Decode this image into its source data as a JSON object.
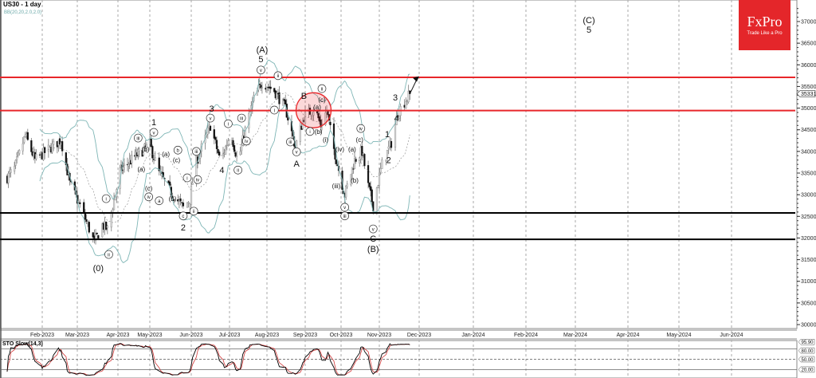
{
  "header": {
    "title": "US30 - 1 day",
    "indicator": "BB(20,20,2.0,2.0)"
  },
  "logo": {
    "brand": "FxPro",
    "tagline": "Trade Like a Pro"
  },
  "chart_data": {
    "type": "candlestick",
    "symbol": "US30",
    "timeframe": "1 day",
    "y_ticks": [
      30000,
      30500,
      31000,
      31500,
      32000,
      32500,
      33000,
      33500,
      34000,
      34500,
      35000,
      35500,
      36000,
      36500,
      37000
    ],
    "ylim": [
      29900,
      37350
    ],
    "x_ticks": [
      {
        "date": "2023-02-01",
        "label": "Feb-2023"
      },
      {
        "date": "2023-03-01",
        "label": "Mar-2023"
      },
      {
        "date": "2023-04-01",
        "label": "Apr-2023"
      },
      {
        "date": "2023-05-01",
        "label": "May-2023"
      },
      {
        "date": "2023-06-01",
        "label": "Jun-2023"
      },
      {
        "date": "2023-07-01",
        "label": "Jul-2023"
      },
      {
        "date": "2023-08-01",
        "label": "Aug-2023"
      },
      {
        "date": "2023-09-01",
        "label": "Sep-2023"
      },
      {
        "date": "2023-10-01",
        "label": "Oct-2023"
      },
      {
        "date": "2023-11-01",
        "label": "Nov-2023"
      },
      {
        "date": "2023-12-01",
        "label": "Dec-2023"
      },
      {
        "date": "2024-01-01",
        "label": "Jan-2024"
      },
      {
        "date": "2024-02-01",
        "label": "Feb-2024"
      },
      {
        "date": "2024-03-01",
        "label": "Mar-2024"
      },
      {
        "date": "2024-04-01",
        "label": "Apr-2024"
      },
      {
        "date": "2024-05-01",
        "label": "May-2024"
      },
      {
        "date": "2024-06-01",
        "label": "Jun-2024"
      }
    ],
    "current_price": "35331",
    "grid": "vertical dashed at month ticks",
    "close_waypoints": [
      [
        "2023-01-03",
        33400
      ],
      [
        "2023-01-09",
        33600
      ],
      [
        "2023-01-18",
        34370
      ],
      [
        "2023-01-26",
        33800
      ],
      [
        "2023-02-16",
        34270
      ],
      [
        "2023-02-23",
        33260
      ],
      [
        "2023-03-03",
        32750
      ],
      [
        "2023-03-14",
        31900
      ],
      [
        "2023-03-20",
        32300
      ],
      [
        "2023-03-24",
        32200
      ],
      [
        "2023-04-03",
        33550
      ],
      [
        "2023-04-18",
        33900
      ],
      [
        "2023-05-01",
        34150
      ],
      [
        "2023-05-08",
        33500
      ],
      [
        "2023-05-16",
        33100
      ],
      [
        "2023-05-26",
        32700
      ],
      [
        "2023-05-31",
        32900
      ],
      [
        "2023-06-04",
        33700
      ],
      [
        "2023-06-16",
        34600
      ],
      [
        "2023-06-24",
        33750
      ],
      [
        "2023-07-02",
        34450
      ],
      [
        "2023-07-08",
        33750
      ],
      [
        "2023-07-14",
        34500
      ],
      [
        "2023-07-21",
        35200
      ],
      [
        "2023-07-28",
        35600
      ],
      [
        "2023-08-07",
        35400
      ],
      [
        "2023-08-16",
        35000
      ],
      [
        "2023-08-24",
        34100
      ],
      [
        "2023-08-31",
        34800
      ],
      [
        "2023-09-09",
        35000
      ],
      [
        "2023-09-14",
        34600
      ],
      [
        "2023-09-19",
        34950
      ],
      [
        "2023-09-25",
        34050
      ],
      [
        "2023-10-04",
        33000
      ],
      [
        "2023-10-12",
        33800
      ],
      [
        "2023-10-18",
        34000
      ],
      [
        "2023-10-23",
        33200
      ],
      [
        "2023-10-27",
        32750
      ],
      [
        "2023-11-03",
        33700
      ],
      [
        "2023-11-10",
        34200
      ],
      [
        "2023-11-15",
        34900
      ],
      [
        "2023-11-24",
        35331
      ]
    ],
    "levels": [
      {
        "price": 35710,
        "color": "#e8262a"
      },
      {
        "price": 34945,
        "color": "#e8262a"
      },
      {
        "price": 32580,
        "color": "#000000"
      },
      {
        "price": 31970,
        "color": "#000000"
      }
    ],
    "highlight_circle": {
      "date": "2023-09-08",
      "price": 34950,
      "color": "#e8262a"
    },
    "forecast_arrow": {
      "from": [
        "2023-11-24",
        35330
      ],
      "to": [
        "2023-11-28",
        35700
      ]
    },
    "annotations": [
      [
        "(0)",
        "2023-03-17",
        31310,
        "plain"
      ],
      [
        "i",
        "2023-03-23",
        32910,
        "circle"
      ],
      [
        "ii",
        "2023-03-25",
        31620,
        "circle"
      ],
      [
        "1",
        "2023-05-04",
        34680,
        "plain"
      ],
      [
        "v",
        "2023-05-04",
        34440,
        "circle"
      ],
      [
        "iii",
        "2023-04-20",
        34310,
        "circle"
      ],
      [
        "(b)",
        "2023-04-27",
        34050,
        "paren"
      ],
      [
        "(a)",
        "2023-04-23",
        33590,
        "paren"
      ],
      [
        "(c)",
        "2023-04-30",
        33150,
        "paren"
      ],
      [
        "iv",
        "2023-04-30",
        32950,
        "circle"
      ],
      [
        "a",
        "2023-05-08",
        32860,
        "circle"
      ],
      [
        "(a)",
        "2023-05-13",
        33940,
        "paren"
      ],
      [
        "b",
        "2023-05-22",
        34030,
        "circle"
      ],
      [
        "(c)",
        "2023-05-21",
        33800,
        "paren"
      ],
      [
        "(b)",
        "2023-05-18",
        32910,
        "paren"
      ],
      [
        "i",
        "2023-05-29",
        33390,
        "circle"
      ],
      [
        "c",
        "2023-05-26",
        32510,
        "circle"
      ],
      [
        "2",
        "2023-05-26",
        32250,
        "plain"
      ],
      [
        "ii",
        "2023-06-03",
        32620,
        "circle"
      ],
      [
        "iii",
        "2023-06-05",
        34000,
        "circle"
      ],
      [
        "iv",
        "2023-06-06",
        33350,
        "circle"
      ],
      [
        "3",
        "2023-06-17",
        34990,
        "plain"
      ],
      [
        "v",
        "2023-06-16",
        34770,
        "circle"
      ],
      [
        "i",
        "2023-06-30",
        34640,
        "circle"
      ],
      [
        "iii",
        "2023-07-11",
        34770,
        "circle"
      ],
      [
        "iv",
        "2023-07-15",
        34240,
        "circle"
      ],
      [
        "ii",
        "2023-07-08",
        33570,
        "circle"
      ],
      [
        "4",
        "2023-06-25",
        33570,
        "plain"
      ],
      [
        "(A)",
        "2023-07-28",
        36355,
        "plain"
      ],
      [
        "5",
        "2023-07-27",
        36130,
        "plain"
      ],
      [
        "v",
        "2023-07-27",
        35880,
        "circle"
      ],
      [
        "ii",
        "2023-08-10",
        35750,
        "circle"
      ],
      [
        "i",
        "2023-08-07",
        34955,
        "circle"
      ],
      [
        "iii",
        "2023-08-20",
        34220,
        "circle"
      ],
      [
        "v",
        "2023-08-25",
        33990,
        "circle"
      ],
      [
        "A",
        "2023-08-25",
        33720,
        "plain"
      ],
      [
        "B",
        "2023-08-31",
        35290,
        "plain"
      ],
      [
        "ii",
        "2023-09-15",
        35450,
        "circle"
      ],
      [
        "(c)",
        "2023-09-15",
        35195,
        "paren"
      ],
      [
        "(a)",
        "2023-09-11",
        35030,
        "paren"
      ],
      [
        "i",
        "2023-09-05",
        34460,
        "circle"
      ],
      [
        "(b)",
        "2023-09-12",
        34460,
        "paren"
      ],
      [
        "(i)",
        "2023-09-18",
        34270,
        "paren"
      ],
      [
        "iv",
        "2023-10-17",
        34530,
        "circle"
      ],
      [
        "(c)",
        "2023-10-16",
        34270,
        "paren"
      ],
      [
        "(a)",
        "2023-10-10",
        34050,
        "paren"
      ],
      [
        "(iv)",
        "2023-09-30",
        34050,
        "paren"
      ],
      [
        "(b)",
        "2023-10-12",
        33330,
        "paren"
      ],
      [
        "(iii)",
        "2023-09-27",
        33210,
        "paren"
      ],
      [
        "v",
        "2023-10-04",
        32710,
        "circle"
      ],
      [
        "iii",
        "2023-10-04",
        32510,
        "circle"
      ],
      [
        "v",
        "2023-10-27",
        32210,
        "circle"
      ],
      [
        "C",
        "2023-10-27",
        31990,
        "plain"
      ],
      [
        "(B)",
        "2023-10-27",
        31750,
        "plain"
      ],
      [
        "1",
        "2023-11-07",
        34400,
        "plain"
      ],
      [
        "2",
        "2023-11-08",
        33800,
        "plain"
      ],
      [
        "3",
        "2023-11-13",
        35250,
        "plain"
      ],
      [
        "4",
        "2023-11-14",
        34770,
        "plain"
      ],
      [
        "(C)",
        "2024-03-09",
        37040,
        "plain"
      ],
      [
        "5",
        "2024-03-09",
        36820,
        "plain"
      ]
    ],
    "indicators": {
      "bollinger": {
        "label": "BB(20,20,2.0,2.0)",
        "period": 20,
        "deviation": 2.0,
        "band_color": "#7fb6b6",
        "mid_color": "#888888"
      },
      "stochastic": {
        "label": "STO Slow(14,3)",
        "k": 14,
        "slowing": 3,
        "d": 3,
        "levels": [
          80,
          50,
          20
        ],
        "level_labels": [
          "95.90",
          "80.00",
          "50.00",
          "20.00"
        ],
        "current": "95.90",
        "k_color": "#000000",
        "d_color": "#d23a3a"
      }
    }
  }
}
